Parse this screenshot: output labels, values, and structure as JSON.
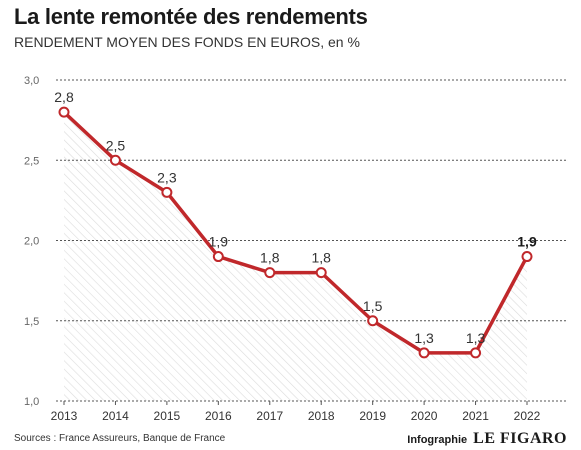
{
  "header": {
    "title": "La lente remontée des rendements",
    "subtitle": "RENDEMENT MOYEN DES FONDS EN EUROS, en %"
  },
  "footer": {
    "sources": "Sources : France Assureurs, Banque de France",
    "credit_label": "Infographie",
    "brand": "LE FIGARO"
  },
  "colors": {
    "line": "#c0282b",
    "grid": "#555555",
    "text": "#333333"
  },
  "chart_data": {
    "type": "line",
    "title": "La lente remontée des rendements",
    "ylabel": "RENDEMENT MOYEN DES FONDS EN EUROS, en %",
    "x": [
      "2013",
      "2014",
      "2015",
      "2016",
      "2017",
      "2018",
      "2019",
      "2020",
      "2021",
      "2022"
    ],
    "values": [
      2.8,
      2.5,
      2.3,
      1.9,
      1.8,
      1.8,
      1.5,
      1.3,
      1.3,
      1.9
    ],
    "value_labels": [
      "2,8",
      "2,5",
      "2,3",
      "1,9",
      "1,8",
      "1,8",
      "1,5",
      "1,3",
      "1,3",
      "1,9"
    ],
    "yticks": [
      1.0,
      1.5,
      2.0,
      2.5,
      3.0
    ],
    "ytick_labels": [
      "1,0",
      "1,5",
      "2,0",
      "2,5",
      "3,0"
    ],
    "ylim": [
      1.0,
      3.0
    ],
    "grid": true,
    "area_fill": "hatched",
    "highlight_last": true
  }
}
